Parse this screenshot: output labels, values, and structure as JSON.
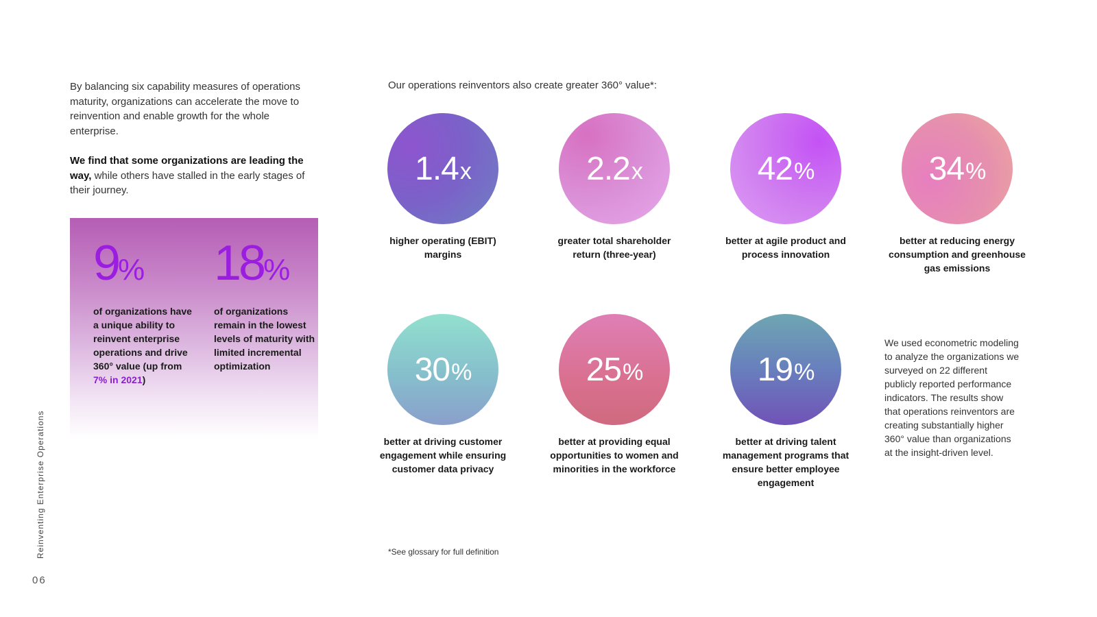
{
  "intro": {
    "paragraph1": "By balancing six capability measures of operations maturity, organizations can accelerate the move to reinvention and enable growth for the whole enterprise.",
    "paragraph2_bold": "We find that some organizations are leading the way,",
    "paragraph2_rest": " while others have stalled in the early stages of their journey."
  },
  "stats": [
    {
      "value": "9",
      "unit": "%",
      "desc_before": "of organizations have a unique ability to reinvent enterprise operations and drive 360° value (up from ",
      "desc_highlight": "7% in 2021",
      "desc_after": ")"
    },
    {
      "value": "18",
      "unit": "%",
      "desc": "of organizations remain in the lowest levels of maturity with limited incremental optimization"
    }
  ],
  "headline": "Our operations reinventors also create greater 360° value*:",
  "metrics": [
    {
      "value": "1.4",
      "unit": "x",
      "label": "higher operating (EBIT) margins"
    },
    {
      "value": "2.2",
      "unit": "x",
      "label": "greater total shareholder return (three-year)"
    },
    {
      "value": "42",
      "unit": "%",
      "label": "better at agile product and process innovation"
    },
    {
      "value": "34",
      "unit": "%",
      "label": "better at reducing energy consumption and greenhouse gas emissions"
    },
    {
      "value": "30",
      "unit": "%",
      "label": "better at driving customer engagement while ensuring customer data privacy"
    },
    {
      "value": "25",
      "unit": "%",
      "label": "better at providing equal opportunities to women and minorities in the workforce"
    },
    {
      "value": "19",
      "unit": "%",
      "label": "better at driving talent management programs that ensure better employee engagement"
    }
  ],
  "note": "We used econometric modeling to analyze the organizations we surveyed on 22 different publicly reported performance indicators. The results show that operations reinventors are creating substantially higher 360° value than organizations at the insight-driven level.",
  "footnote": "*See glossary for full definition",
  "side_title": "Reinventing Enterprise Operations",
  "page_number": "06"
}
